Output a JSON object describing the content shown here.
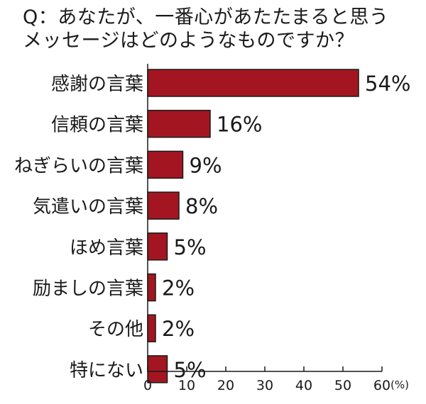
{
  "title_lines": [
    "Q：あなたが、一番心があたたまると思う",
    "メッセージはどのようなものですか？"
  ],
  "colors": {
    "bar": "#a31621",
    "bar_outline": "#1a1a1a",
    "text": "#1a1a1a"
  },
  "chart_data": {
    "type": "bar",
    "orientation": "horizontal",
    "categories": [
      "感謝の言葉",
      "信頼の言葉",
      "ねぎらいの言葉",
      "気遣いの言葉",
      "ほめ言葉",
      "励ましの言葉",
      "その他",
      "特にない"
    ],
    "values": [
      54,
      16,
      9,
      8,
      5,
      2,
      2,
      5
    ],
    "value_labels": [
      "54%",
      "16%",
      "9%",
      "8%",
      "5%",
      "2%",
      "2%",
      "5%"
    ],
    "x_ticks": [
      "0",
      "10",
      "20",
      "30",
      "40",
      "50",
      "60"
    ],
    "x_unit": "(%)",
    "xlim": [
      0,
      60
    ],
    "grid": false
  }
}
